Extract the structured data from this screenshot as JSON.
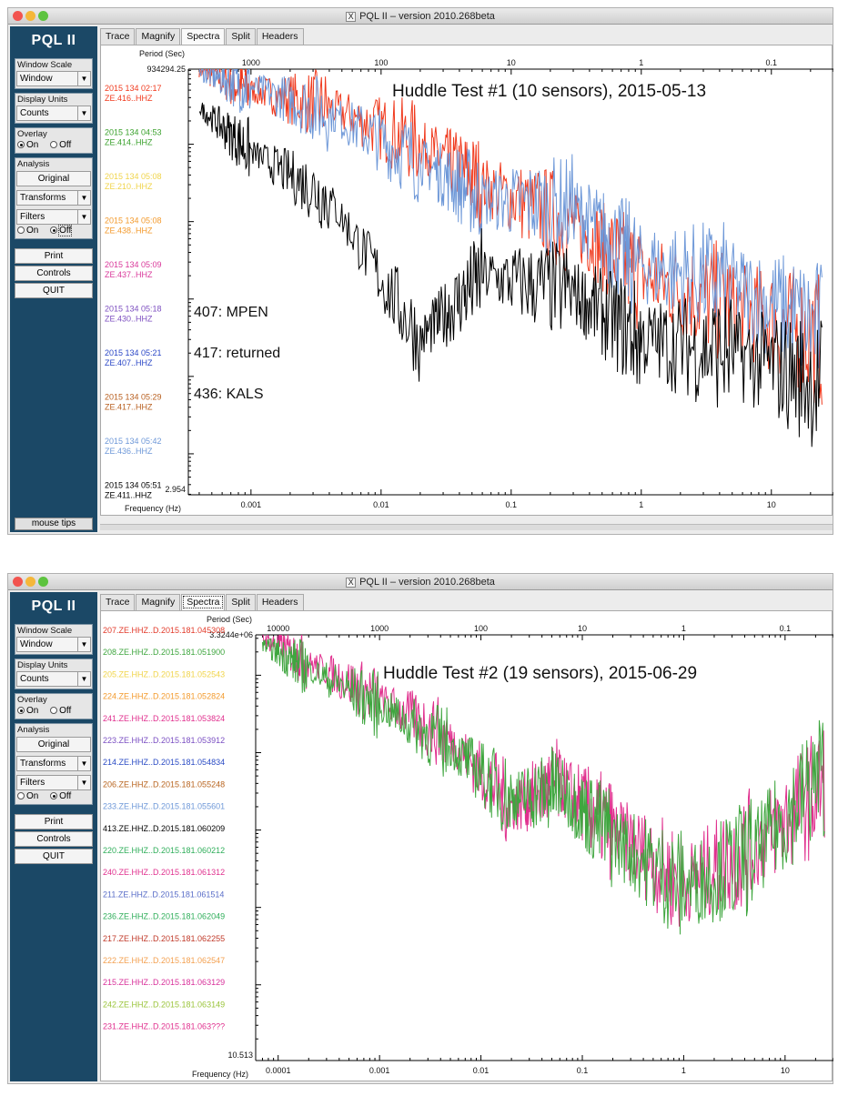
{
  "windows": [
    {
      "title": "PQL II – version 2010.268beta",
      "brand": "PQL II",
      "window_scale": {
        "label": "Window Scale",
        "value": "Window"
      },
      "display_units": {
        "label": "Display Units",
        "value": "Counts"
      },
      "overlay": {
        "label": "Overlay",
        "on": "On",
        "off": "Off",
        "selected": "On"
      },
      "analysis": {
        "label": "Analysis",
        "original": "Original",
        "transforms": "Transforms",
        "filters": "Filters",
        "on": "On",
        "off": "Off",
        "selected": "Off"
      },
      "buttons": {
        "print": "Print",
        "controls": "Controls",
        "quit": "QUIT"
      },
      "mouse_tips": "mouse tips",
      "tabs": [
        "Trace",
        "Magnify",
        "Spectra",
        "Split",
        "Headers"
      ],
      "active_tab": "Spectra",
      "period_label": "Period (Sec)",
      "frequency_label": "Frequency (Hz)",
      "ymax_label": "934294.25",
      "ymin_label": "2.954",
      "annotation_title": "Huddle Test #1 (10 sensors), 2015-05-13",
      "notes": [
        "407: MPEN",
        "417: returned",
        "436: KALS"
      ],
      "period_ticks": [
        "1000",
        "100",
        "10",
        "1",
        "0.1"
      ],
      "freq_ticks": [
        "0.001",
        "0.01",
        "0.1",
        "1",
        "10"
      ],
      "channels": [
        {
          "line1": "2015 134 02:17",
          "line2": "ZE.416..HHZ",
          "color": "#f03a1e"
        },
        {
          "line1": "2015 134 04:53",
          "line2": "ZE.414..HHZ",
          "color": "#3aa12c"
        },
        {
          "line1": "2015 134 05:08",
          "line2": "ZE.210..HHZ",
          "color": "#f0d44a"
        },
        {
          "line1": "2015 134 05:08",
          "line2": "ZE.438..HHZ",
          "color": "#f39a2c"
        },
        {
          "line1": "2015 134 05:09",
          "line2": "ZE.437..HHZ",
          "color": "#d9389a"
        },
        {
          "line1": "2015 134 05:18",
          "line2": "ZE.430..HHZ",
          "color": "#7d4fc0"
        },
        {
          "line1": "2015 134 05:21",
          "line2": "ZE.407..HHZ",
          "color": "#2b47c6"
        },
        {
          "line1": "2015 134 05:29",
          "line2": "ZE.417..HHZ",
          "color": "#b85f1f"
        },
        {
          "line1": "2015 134 05:42",
          "line2": "ZE.436..HHZ",
          "color": "#6e98d8"
        },
        {
          "line1": "2015 134 05:51",
          "line2": "ZE.411..HHZ",
          "color": "#000000"
        }
      ],
      "chart_data": {
        "type": "line",
        "xscale": "log",
        "xlabel": "Frequency (Hz)",
        "xlim": [
          0.00033,
          30
        ],
        "ylim": [
          2.954,
          934294.25
        ],
        "yscale": "log",
        "series": [
          {
            "name": "ZE.416..HHZ",
            "x": [
              0.0004,
              0.001,
              0.004,
              0.02,
              0.06,
              0.3,
              1,
              5,
              25
            ],
            "y": [
              900000,
              500000,
              300000,
              100000,
              30000,
              9000,
              2000,
              800,
              300
            ]
          },
          {
            "name": "ZE.436..HHZ",
            "x": [
              0.0004,
              0.001,
              0.004,
              0.02,
              0.06,
              0.3,
              0.9,
              5,
              25
            ],
            "y": [
              850000,
              550000,
              250000,
              60000,
              20000,
              15000,
              3000,
              1500,
              400
            ]
          },
          {
            "name": "ZE.411..HHZ",
            "x": [
              0.0004,
              0.001,
              0.004,
              0.02,
              0.06,
              0.3,
              1,
              5,
              25
            ],
            "y": [
              300000,
              80000,
              20000,
              300,
              2000,
              1200,
              300,
              200,
              80
            ]
          }
        ]
      }
    },
    {
      "title": "PQL II – version 2010.268beta",
      "brand": "PQL II",
      "window_scale": {
        "label": "Window Scale",
        "value": "Window"
      },
      "display_units": {
        "label": "Display Units",
        "value": "Counts"
      },
      "overlay": {
        "label": "Overlay",
        "on": "On",
        "off": "Off",
        "selected": "On"
      },
      "analysis": {
        "label": "Analysis",
        "original": "Original",
        "transforms": "Transforms",
        "filters": "Filters",
        "on": "On",
        "off": "Off",
        "selected": "Off"
      },
      "buttons": {
        "print": "Print",
        "controls": "Controls",
        "quit": "QUIT"
      },
      "tabs": [
        "Trace",
        "Magnify",
        "Spectra",
        "Split",
        "Headers"
      ],
      "active_tab": "Spectra",
      "period_label": "Period (Sec)",
      "frequency_label": "Frequency (Hz)",
      "ymax_label": "3.3244e+06",
      "ymin_label": "10.513",
      "annotation_title": "Huddle Test #2 (19 sensors), 2015-06-29",
      "period_ticks": [
        "10000",
        "1000",
        "100",
        "10",
        "1",
        "0.1"
      ],
      "freq_ticks": [
        "0.0001",
        "0.001",
        "0.01",
        "0.1",
        "1",
        "10"
      ],
      "channels": [
        {
          "label": "207.ZE.HHZ..D.2015.181.045308",
          "color": "#e23a2a"
        },
        {
          "label": "208.ZE.HHZ..D.2015.181.051900",
          "color": "#3fa63f"
        },
        {
          "label": "205.ZE.HHZ..D.2015.181.052543",
          "color": "#f0d44a"
        },
        {
          "label": "224.ZE.HHZ..D.2015.181.052824",
          "color": "#f39a2c"
        },
        {
          "label": "241.ZE.HHZ..D.2015.181.053824",
          "color": "#e0308e"
        },
        {
          "label": "223.ZE.HHZ..D.2015.181.053912",
          "color": "#7a4ec2"
        },
        {
          "label": "214.ZE.HHZ..D.2015.181.054834",
          "color": "#2a4bc4"
        },
        {
          "label": "206.ZE.HHZ..D.2015.181.055248",
          "color": "#b8641f"
        },
        {
          "label": "233.ZE.HHZ..D.2015.181.055601",
          "color": "#6e98d8"
        },
        {
          "label": "413.ZE.HHZ..D.2015.181.060209",
          "color": "#000000"
        },
        {
          "label": "220.ZE.HHZ..D.2015.181.060212",
          "color": "#2fae5a"
        },
        {
          "label": "240.ZE.HHZ..D.2015.181.061312",
          "color": "#e0308e"
        },
        {
          "label": "211.ZE.HHZ..D.2015.181.061514",
          "color": "#5a6ec8"
        },
        {
          "label": "236.ZE.HHZ..D.2015.181.062049",
          "color": "#2fae5a"
        },
        {
          "label": "217.ZE.HHZ..D.2015.181.062255",
          "color": "#c03a2a"
        },
        {
          "label": "222.ZE.HHZ..D.2015.181.062547",
          "color": "#f3a050"
        },
        {
          "label": "215.ZE.HHZ..D.2015.181.063129",
          "color": "#d8309a"
        },
        {
          "label": "242.ZE.HHZ..D.2015.181.063149",
          "color": "#9ac43a"
        },
        {
          "label": "231.ZE.HHZ..D.2015.181.063???",
          "color": "#e0308e"
        }
      ],
      "chart_data": {
        "type": "line",
        "xscale": "log",
        "xlabel": "Frequency (Hz)",
        "xlim": [
          6e-05,
          30
        ],
        "ylim": [
          10.513,
          3324400
        ],
        "yscale": "log",
        "series": [
          {
            "name": "241.ZE.HHZ..D.2015.181.053824",
            "x": [
              7e-05,
              0.0002,
              0.001,
              0.005,
              0.02,
              0.06,
              0.2,
              1,
              5,
              25
            ],
            "y": [
              3000000,
              1500000,
              500000,
              150000,
              20000,
              40000,
              10000,
              2000,
              6000,
              40000
            ]
          },
          {
            "name": "208.ZE.HHZ..D.2015.181.051900",
            "x": [
              7e-05,
              0.0002,
              0.001,
              0.005,
              0.02,
              0.06,
              0.2,
              1,
              5,
              25
            ],
            "y": [
              2500000,
              1200000,
              400000,
              120000,
              25000,
              35000,
              8000,
              1800,
              5000,
              60000
            ]
          }
        ]
      }
    }
  ]
}
